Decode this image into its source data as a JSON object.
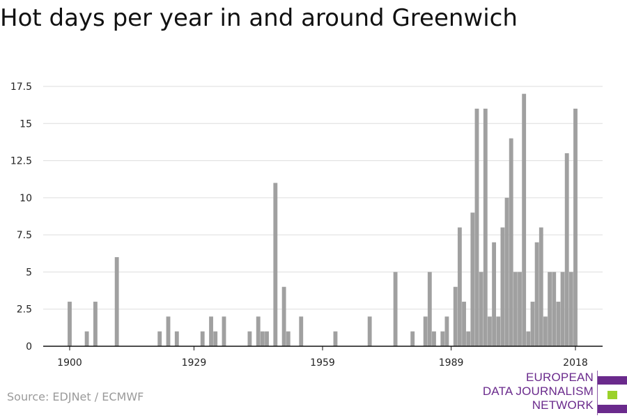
{
  "title": "Hot days per year in and around Greenwich",
  "source": "Source: EDJNet / ECMWF",
  "logo": {
    "lines": [
      "EUROPEAN",
      "DATA JOURNALISM",
      "NETWORK"
    ],
    "colors": [
      "#6a2a8c",
      "#9ad12a",
      "#6a2a8c"
    ]
  },
  "colors": {
    "bar": "#a0a0a0",
    "grid": "#dddddd",
    "axis": "#111111",
    "text": "#222222"
  },
  "chart_data": {
    "type": "bar",
    "title": "Hot days per year in and around Greenwich",
    "xlabel": "",
    "ylabel": "",
    "xlim": [
      1900,
      2018
    ],
    "ylim": [
      0,
      17.5
    ],
    "xticks": [
      "1900",
      "1929",
      "1959",
      "1989",
      "2018"
    ],
    "yticks": [
      "0",
      "2.5",
      "5",
      "7.5",
      "10",
      "12.5",
      "15",
      "17.5"
    ],
    "grid": "horizontal",
    "x": [
      1900,
      1904,
      1906,
      1911,
      1921,
      1923,
      1925,
      1931,
      1933,
      1934,
      1936,
      1942,
      1944,
      1945,
      1946,
      1948,
      1950,
      1951,
      1954,
      1962,
      1970,
      1976,
      1980,
      1983,
      1984,
      1985,
      1987,
      1988,
      1990,
      1991,
      1992,
      1993,
      1994,
      1995,
      1996,
      1997,
      1998,
      1999,
      2000,
      2001,
      2002,
      2003,
      2004,
      2005,
      2006,
      2007,
      2008,
      2009,
      2010,
      2011,
      2012,
      2013,
      2014,
      2015,
      2016,
      2017,
      2018
    ],
    "values": [
      3,
      1,
      3,
      6,
      1,
      2,
      1,
      1,
      2,
      1,
      2,
      1,
      2,
      1,
      1,
      11,
      4,
      1,
      2,
      1,
      2,
      5,
      1,
      2,
      5,
      1,
      1,
      2,
      4,
      8,
      3,
      1,
      9,
      16,
      5,
      16,
      2,
      7,
      2,
      8,
      10,
      14,
      5,
      5,
      17,
      1,
      3,
      7,
      8,
      2,
      5,
      5,
      3,
      5,
      13,
      5,
      16
    ]
  }
}
